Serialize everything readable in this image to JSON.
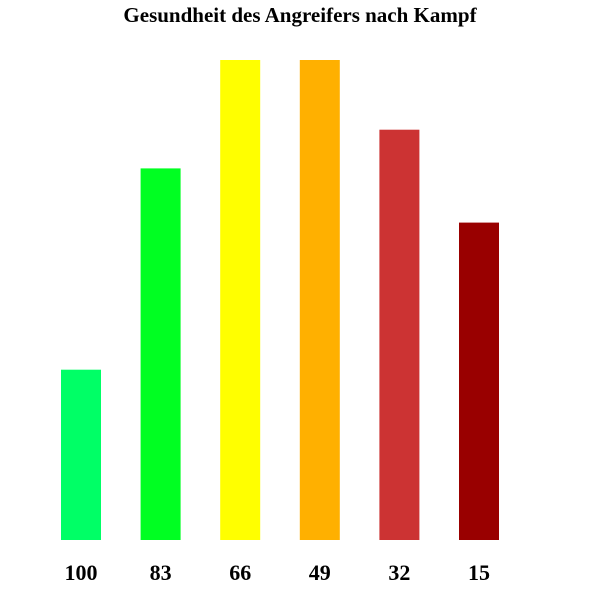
{
  "chart_data": {
    "type": "bar",
    "title": "Gesundheit des Angreifers nach Kampf",
    "xlabel": "",
    "ylabel": "",
    "categories": [
      "100",
      "83",
      "66",
      "49",
      "32",
      "15"
    ],
    "values": [
      44,
      96,
      124,
      124,
      106,
      82
    ],
    "ylim": [
      0,
      124
    ],
    "grid": false,
    "legend": "none",
    "colors": [
      "#00ff66",
      "#00ff22",
      "#ffff00",
      "#ffb000",
      "#cc3333",
      "#990000"
    ]
  }
}
